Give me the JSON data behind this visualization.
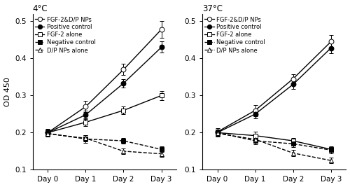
{
  "title_left": "4°C",
  "title_right": "37°C",
  "ylabel": "OD 450",
  "xlabel_ticks": [
    "Day 0",
    "Day 1",
    "Day 2",
    "Day 3"
  ],
  "ylim": [
    0.1,
    0.52
  ],
  "yticks": [
    0.1,
    0.2,
    0.3,
    0.4,
    0.5
  ],
  "legend_labels": [
    "FGF-2&D/P NPs",
    "Positive control",
    "FGF-2 alone",
    "Negative control",
    "D/P NPs alone"
  ],
  "left": {
    "FGF2_DP": {
      "y": [
        0.2,
        0.27,
        0.37,
        0.478
      ],
      "yerr": [
        0.01,
        0.015,
        0.015,
        0.022
      ]
    },
    "Pos": {
      "y": [
        0.2,
        0.248,
        0.333,
        0.43
      ],
      "yerr": [
        0.008,
        0.012,
        0.012,
        0.015
      ]
    },
    "FGF2": {
      "y": [
        0.2,
        0.228,
        0.26,
        0.3
      ],
      "yerr": [
        0.008,
        0.01,
        0.01,
        0.012
      ]
    },
    "Neg": {
      "y": [
        0.198,
        0.183,
        0.178,
        0.155
      ],
      "yerr": [
        0.008,
        0.01,
        0.008,
        0.008
      ]
    },
    "DP": {
      "y": [
        0.197,
        0.185,
        0.15,
        0.143
      ],
      "yerr": [
        0.008,
        0.008,
        0.008,
        0.008
      ]
    }
  },
  "right": {
    "FGF2_DP": {
      "y": [
        0.202,
        0.26,
        0.345,
        0.445
      ],
      "yerr": [
        0.01,
        0.015,
        0.012,
        0.018
      ]
    },
    "Pos": {
      "y": [
        0.2,
        0.25,
        0.33,
        0.428
      ],
      "yerr": [
        0.008,
        0.012,
        0.012,
        0.015
      ]
    },
    "FGF2": {
      "y": [
        0.2,
        0.192,
        0.178,
        0.155
      ],
      "yerr": [
        0.008,
        0.01,
        0.008,
        0.008
      ]
    },
    "Neg": {
      "y": [
        0.2,
        0.178,
        0.17,
        0.153
      ],
      "yerr": [
        0.008,
        0.01,
        0.008,
        0.008
      ]
    },
    "DP": {
      "y": [
        0.198,
        0.182,
        0.145,
        0.125
      ],
      "yerr": [
        0.008,
        0.008,
        0.008,
        0.008
      ]
    }
  },
  "series_styles": {
    "FGF2_DP": {
      "color": "#000000",
      "marker": "o",
      "mfc": "white",
      "mec": "#000000",
      "ls": "-",
      "lw": 1.0,
      "ms": 5
    },
    "Pos": {
      "color": "#000000",
      "marker": "o",
      "mfc": "#000000",
      "mec": "#000000",
      "ls": "-",
      "lw": 1.0,
      "ms": 5
    },
    "FGF2": {
      "color": "#000000",
      "marker": "s",
      "mfc": "white",
      "mec": "#000000",
      "ls": "-",
      "lw": 1.0,
      "ms": 5
    },
    "Neg": {
      "color": "#000000",
      "marker": "s",
      "mfc": "#000000",
      "mec": "#000000",
      "ls": "--",
      "lw": 1.0,
      "ms": 5
    },
    "DP": {
      "color": "#000000",
      "marker": "^",
      "mfc": "white",
      "mec": "#000000",
      "ls": "--",
      "lw": 1.0,
      "ms": 5
    }
  },
  "figsize": [
    5.0,
    2.67
  ],
  "dpi": 100
}
